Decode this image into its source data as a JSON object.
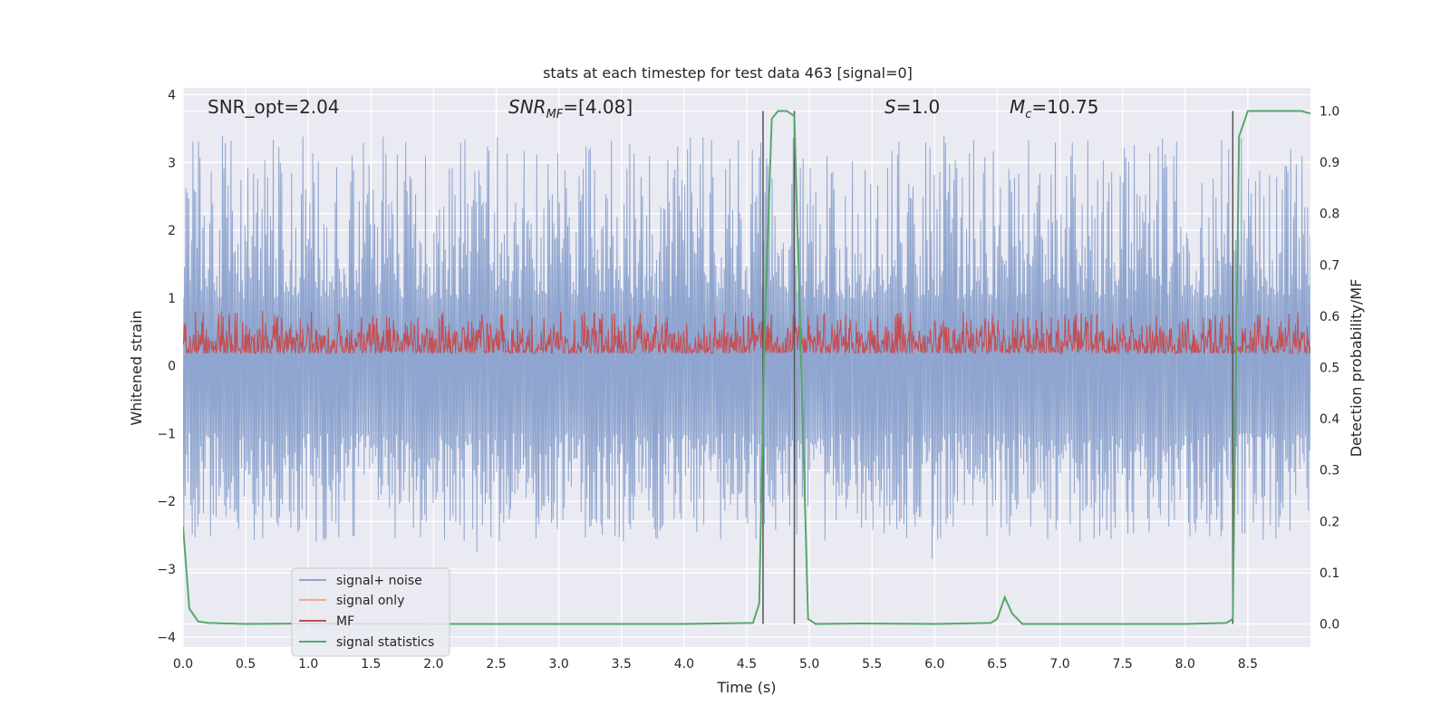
{
  "chart_data": {
    "type": "line",
    "title": "stats at each timestep for test data 463 [signal=0]",
    "xlabel": "Time (s)",
    "ylabel_left": "Whitened strain",
    "ylabel_right": "Detection probability/MF",
    "xlim": [
      0.0,
      9.0
    ],
    "ylim_left": [
      -4.15,
      4.1
    ],
    "ylim_right": [
      -0.045,
      1.045
    ],
    "x_ticks": [
      "0.0",
      "0.5",
      "1.0",
      "1.5",
      "2.0",
      "2.5",
      "3.0",
      "3.5",
      "4.0",
      "4.5",
      "5.0",
      "5.5",
      "6.0",
      "6.5",
      "7.0",
      "7.5",
      "8.0",
      "8.5"
    ],
    "y_ticks_left": [
      "−4",
      "−3",
      "−2",
      "−1",
      "0",
      "1",
      "2",
      "3",
      "4"
    ],
    "y_ticks_right": [
      "0.0",
      "0.1",
      "0.2",
      "0.3",
      "0.4",
      "0.5",
      "0.6",
      "0.7",
      "0.8",
      "0.9",
      "1.0"
    ],
    "grid": true,
    "legend_position": "lower-left",
    "annotations": {
      "snr_opt": "SNR_opt=2.04",
      "snr_mf_main": "SNR",
      "snr_mf_sub": "MF",
      "snr_mf_tail": "=[4.08]",
      "s_var": "S",
      "s_val": "=1.0",
      "mc_var": "M",
      "mc_sub": "c",
      "mc_val": "=10.75"
    },
    "series": [
      {
        "name": "signal+ noise",
        "color": "#8fa5cf",
        "axis": "left",
        "band_lower": [
          -2.6,
          -1.0
        ],
        "band_upper": [
          1.0,
          3.4
        ]
      },
      {
        "name": "signal only",
        "color": "#f0a98a",
        "axis": "left",
        "values": []
      },
      {
        "name": "MF",
        "color": "#c44e52",
        "axis": "right",
        "band": [
          0.5,
          0.61
        ]
      },
      {
        "name": "signal statistics",
        "color": "#55a868",
        "axis": "right",
        "points": [
          [
            0.0,
            0.19
          ],
          [
            0.05,
            0.03
          ],
          [
            0.12,
            0.005
          ],
          [
            0.2,
            0.002
          ],
          [
            0.5,
            0.0
          ],
          [
            1.0,
            0.001
          ],
          [
            2.0,
            0.0
          ],
          [
            3.0,
            0.0
          ],
          [
            4.0,
            0.0
          ],
          [
            4.55,
            0.002
          ],
          [
            4.6,
            0.04
          ],
          [
            4.64,
            0.55
          ],
          [
            4.7,
            0.985
          ],
          [
            4.75,
            1.0
          ],
          [
            4.82,
            1.0
          ],
          [
            4.88,
            0.99
          ],
          [
            4.93,
            0.55
          ],
          [
            4.99,
            0.01
          ],
          [
            5.05,
            0.0
          ],
          [
            5.4,
            0.001
          ],
          [
            6.0,
            0.0
          ],
          [
            6.45,
            0.002
          ],
          [
            6.5,
            0.01
          ],
          [
            6.56,
            0.052
          ],
          [
            6.62,
            0.02
          ],
          [
            6.7,
            0.0
          ],
          [
            7.0,
            0.0
          ],
          [
            8.0,
            0.0
          ],
          [
            8.33,
            0.002
          ],
          [
            8.38,
            0.01
          ],
          [
            8.43,
            0.95
          ],
          [
            8.5,
            1.0
          ],
          [
            8.7,
            1.0
          ],
          [
            8.93,
            1.0
          ],
          [
            9.0,
            0.995
          ]
        ]
      }
    ],
    "vertical_lines": [
      4.63,
      4.88,
      8.38
    ]
  }
}
